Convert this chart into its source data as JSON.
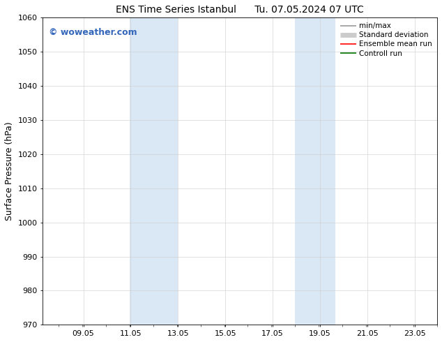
{
  "title_left": "ENS Time Series Istanbul",
  "title_right": "Tu. 07.05.2024 07 UTC",
  "ylabel": "Surface Pressure (hPa)",
  "ylim": [
    970,
    1060
  ],
  "yticks": [
    970,
    980,
    990,
    1000,
    1010,
    1020,
    1030,
    1040,
    1050,
    1060
  ],
  "xlim_start": 7.333,
  "xlim_end": 24.0,
  "xtick_positions": [
    9.05,
    11.05,
    13.05,
    15.05,
    17.05,
    19.05,
    21.05,
    23.05
  ],
  "xticklabels": [
    "09.05",
    "11.05",
    "13.05",
    "15.05",
    "17.05",
    "19.05",
    "21.05",
    "23.05"
  ],
  "shaded_regions": [
    {
      "x_start": 11.0,
      "x_end": 13.05
    },
    {
      "x_start": 18.0,
      "x_end": 19.7
    }
  ],
  "shaded_color": "#dae8f5",
  "background_color": "#ffffff",
  "watermark_text": "© woweather.com",
  "watermark_color": "#3366bb",
  "legend_items": [
    {
      "label": "min/max",
      "color": "#999999",
      "lw": 1.2
    },
    {
      "label": "Standard deviation",
      "color": "#cccccc",
      "lw": 5
    },
    {
      "label": "Ensemble mean run",
      "color": "#ff0000",
      "lw": 1.2
    },
    {
      "label": "Controll run",
      "color": "#007700",
      "lw": 1.2
    }
  ],
  "title_fontsize": 10,
  "tick_fontsize": 8,
  "ylabel_fontsize": 9,
  "watermark_fontsize": 9,
  "legend_fontsize": 7.5
}
